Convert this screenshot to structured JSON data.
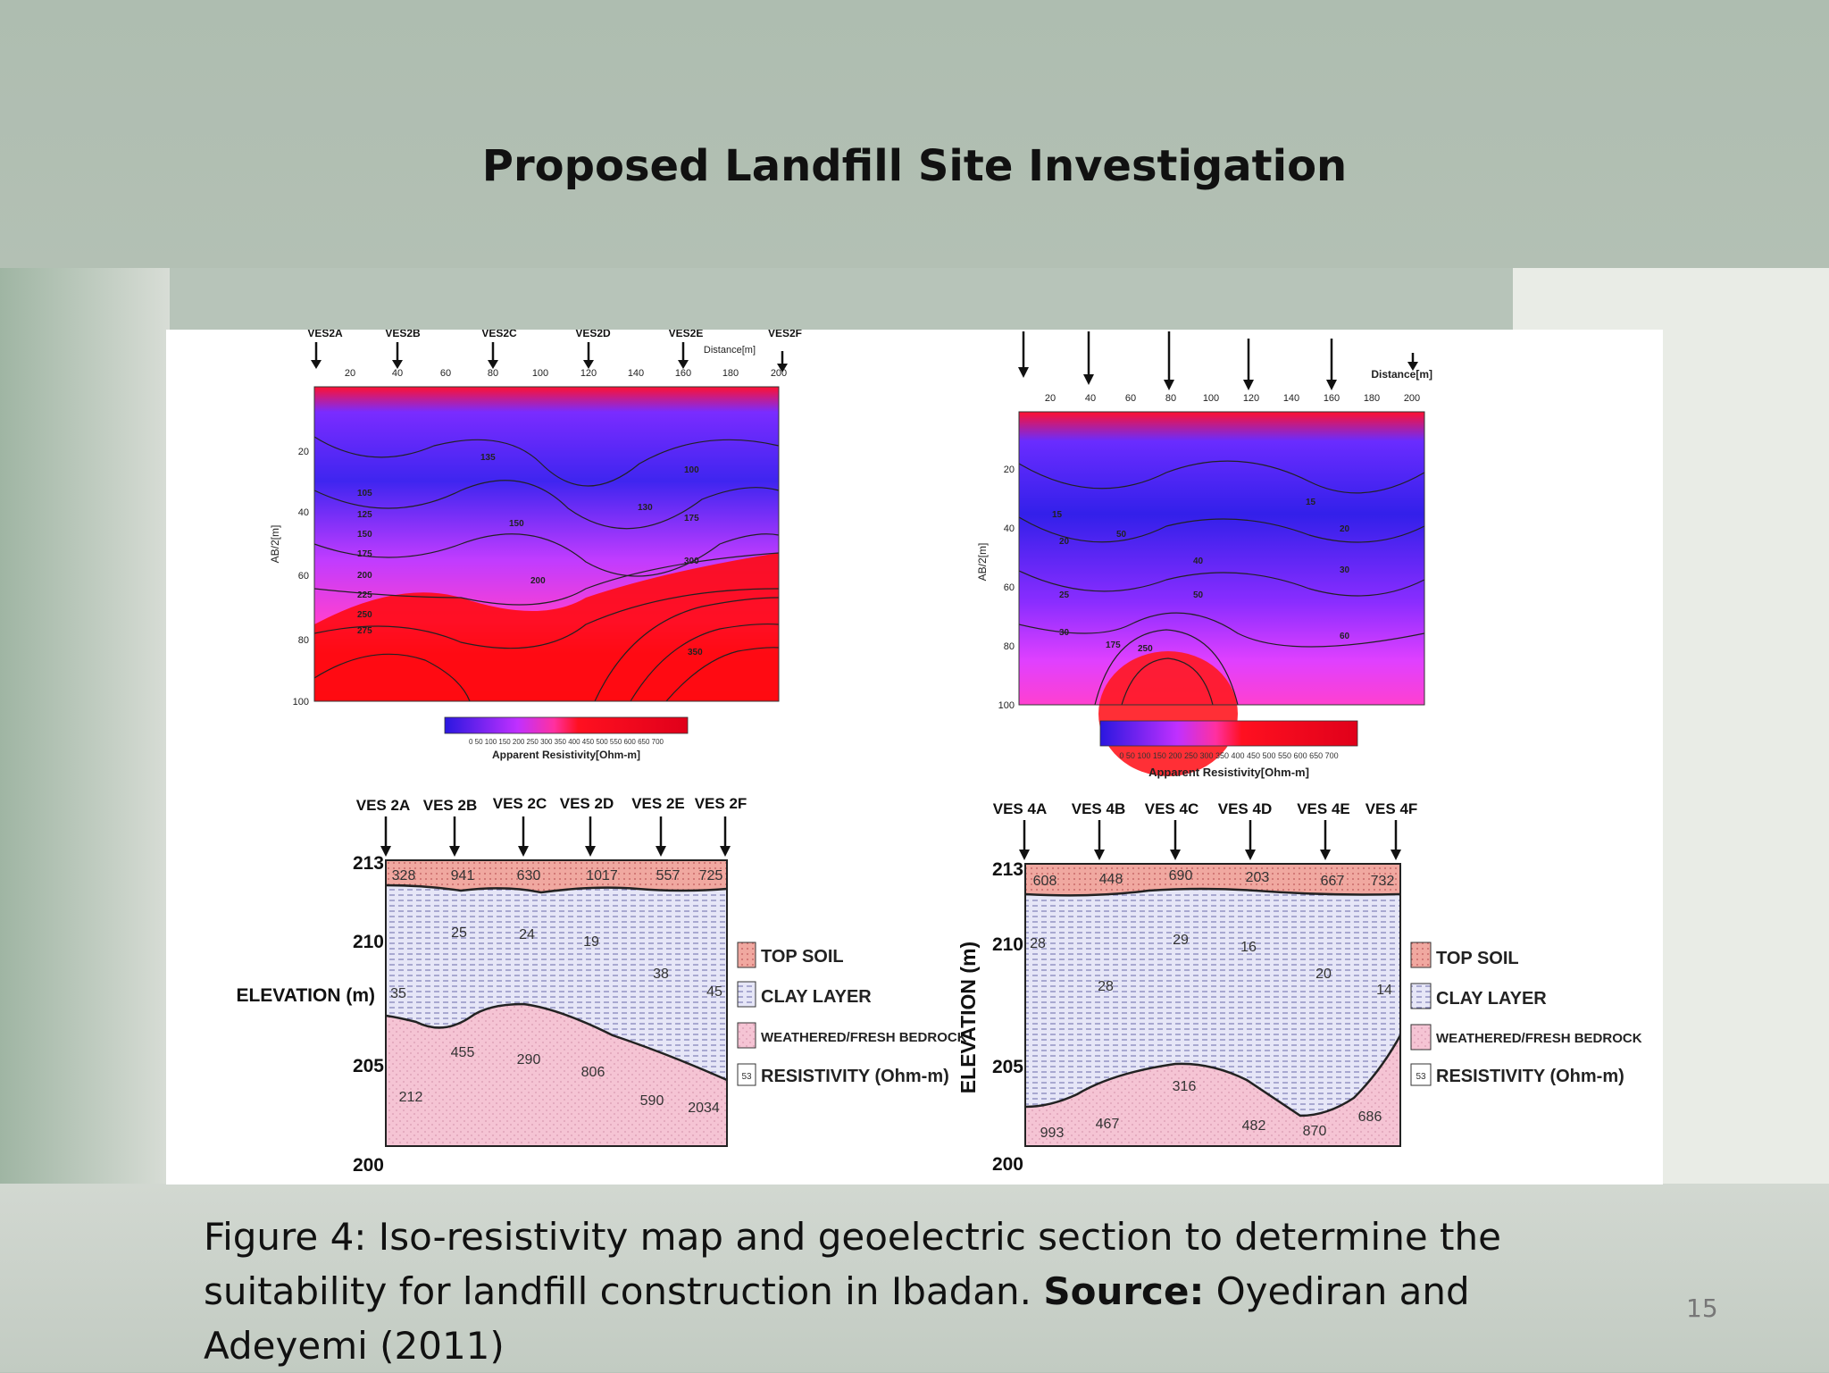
{
  "slide": {
    "title": "Proposed Landfill Site Investigation",
    "page_number": "15"
  },
  "caption": {
    "text_before_source": "Figure 4: Iso-resistivity map and  geoelectric section to determine the suitability for landfill construction in Ibadan.",
    "source_label": "Source:",
    "source_text": "Oyediran and Adeyemi (2011)"
  },
  "figure": {
    "map_left": {
      "stations": [
        "VES2A",
        "VES2B",
        "VES2C",
        "VES2D",
        "VES2E",
        "VES2F"
      ],
      "distance_label": "Distance[m]",
      "x_ticks": [
        "20",
        "40",
        "60",
        "80",
        "100",
        "120",
        "140",
        "160",
        "180",
        "200"
      ],
      "y_ticks": [
        "20",
        "40",
        "60",
        "80",
        "100"
      ],
      "y_axis_label": "AB/2[m]",
      "contour_labels": [
        "135",
        "100",
        "105",
        "125",
        "150",
        "175",
        "200",
        "225",
        "250",
        "275",
        "130",
        "150",
        "175",
        "200",
        "300",
        "350"
      ],
      "colorbar_ticks": "0  50  100 150 200 250 300 350 400 450 500 550 600 650 700",
      "colorbar_label": "Apparent Resistivity[Ohm-m]"
    },
    "map_right": {
      "distance_label": "Distance[m]",
      "x_ticks": [
        "20",
        "40",
        "60",
        "80",
        "100",
        "120",
        "140",
        "160",
        "180",
        "200"
      ],
      "y_ticks": [
        "20",
        "40",
        "60",
        "80",
        "100"
      ],
      "y_axis_label": "AB/2[m]",
      "contour_labels": [
        "15",
        "20",
        "25",
        "30",
        "40",
        "50",
        "15",
        "20",
        "30",
        "60",
        "50",
        "175",
        "250"
      ],
      "colorbar_ticks": "0  50  100 150 200 250 300 350 400 450 500 550 600 650 700",
      "colorbar_label": "Apparent Resistivity[Ohm-m]"
    },
    "section_left": {
      "stations": [
        "VES 2A",
        "VES 2B",
        "VES 2C",
        "VES 2D",
        "VES 2E",
        "VES 2F"
      ],
      "elevation_ticks": [
        "213",
        "210",
        "205",
        "200"
      ],
      "elevation_label": "ELEVATION (m)",
      "topsoil_values": [
        "328",
        "941",
        "630",
        "1017",
        "557",
        "725"
      ],
      "clay_values": [
        "25",
        "24",
        "19",
        "38",
        "35",
        "45"
      ],
      "bedrock_values": [
        "455",
        "290",
        "806",
        "212",
        "590",
        "2034"
      ]
    },
    "section_right": {
      "stations": [
        "VES 4A",
        "VES 4B",
        "VES 4C",
        "VES 4D",
        "VES 4E",
        "VES 4F"
      ],
      "elevation_ticks": [
        "213",
        "210",
        "205",
        "200"
      ],
      "elevation_label": "ELEVATION (m)",
      "topsoil_values": [
        "608",
        "448",
        "690",
        "203",
        "667",
        "732"
      ],
      "clay_values": [
        "28",
        "29",
        "16",
        "28",
        "20",
        "14"
      ],
      "bedrock_values": [
        "316",
        "993",
        "467",
        "482",
        "870",
        "686"
      ]
    },
    "legend": {
      "topsoil": "TOP SOIL",
      "clay": "CLAY LAYER",
      "bedrock": "WEATHERED/FRESH BEDROCK",
      "resistivity": "RESISTIVITY (Ohm-m)",
      "resistivity_swatch": "53"
    },
    "colors": {
      "low": "#2a17e0",
      "mid": "#b22bff",
      "high": "#ff0a10",
      "topsoil": "#f0a0a0",
      "clay": "#e6e6f7",
      "bedrock": "#f5c4d4"
    }
  }
}
